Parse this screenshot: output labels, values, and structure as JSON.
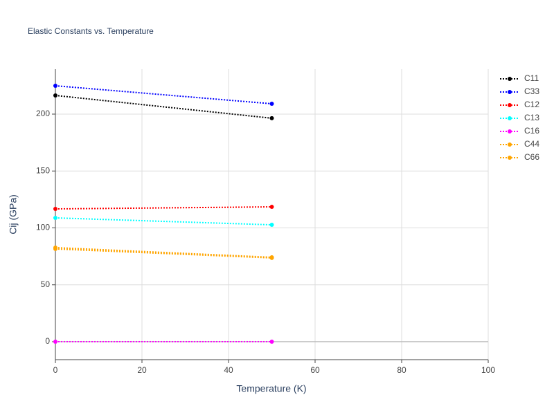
{
  "chart_data": {
    "type": "line",
    "title": "Elastic Constants vs. Temperature",
    "x_label": "Temperature (K)",
    "y_label": "Cij (GPa)",
    "x": [
      0,
      50
    ],
    "series": [
      {
        "name": "C11",
        "color": "#000000",
        "values": [
          216.4,
          196.4
        ]
      },
      {
        "name": "C33",
        "color": "#0000ff",
        "values": [
          224.9,
          209.1
        ]
      },
      {
        "name": "C12",
        "color": "#ff0000",
        "values": [
          116.7,
          118.5
        ]
      },
      {
        "name": "C13",
        "color": "#00ffff",
        "values": [
          108.8,
          102.7
        ]
      },
      {
        "name": "C16",
        "color": "#ff00ff",
        "values": [
          0,
          0
        ]
      },
      {
        "name": "C44",
        "color": "#ffa500",
        "values": [
          82.7,
          74.2
        ]
      },
      {
        "name": "C66",
        "color": "#ffa500",
        "values": [
          81.5,
          73.6
        ]
      }
    ],
    "xlim": [
      0,
      100
    ],
    "xticks": [
      0,
      20,
      40,
      60,
      80,
      100
    ],
    "ylim": [
      -15.8,
      239.5
    ],
    "yticks": [
      0,
      50,
      100,
      150,
      200
    ],
    "grid": true,
    "legend": "right"
  }
}
